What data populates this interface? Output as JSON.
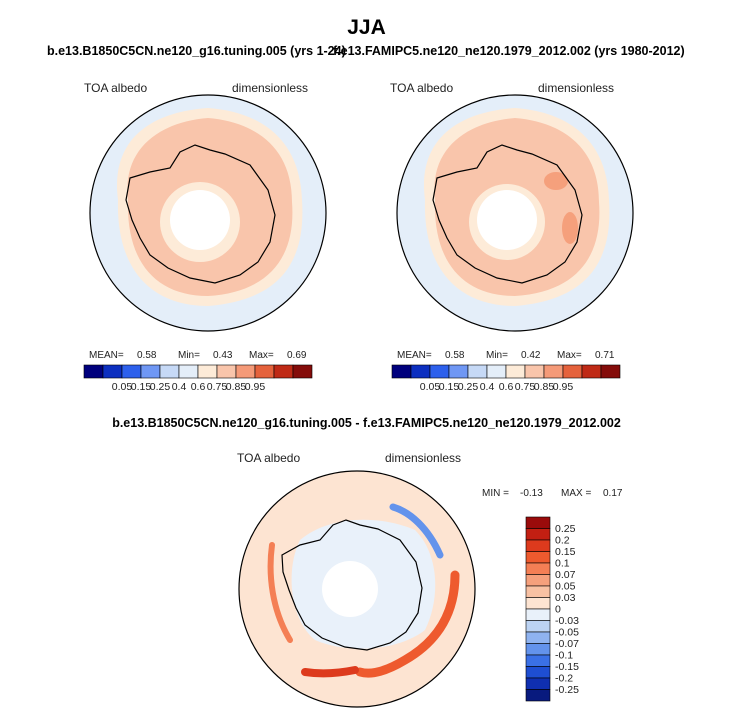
{
  "figure": {
    "season": "JJA"
  },
  "panels": [
    {
      "title": "b.e13.B1850C5CN.ne120_g16.tuning.005 (yrs 1-24)",
      "variable": "TOA albedo",
      "units": "dimensionless",
      "stats": {
        "mean_label": "MEAN=",
        "mean": "0.58",
        "min_label": "Min=",
        "min": "0.43",
        "max_label": "Max=",
        "max": "0.69"
      }
    },
    {
      "title": "f.e13.FAMIPC5.ne120_ne120.1979_2012.002 (yrs 1980-2012)",
      "variable": "TOA albedo",
      "units": "dimensionless",
      "stats": {
        "mean_label": "MEAN=",
        "mean": "0.58",
        "min_label": "Min=",
        "min": "0.42",
        "max_label": "Max=",
        "max": "0.71"
      }
    },
    {
      "title": "b.e13.B1850C5CN.ne120_g16.tuning.005 - f.e13.FAMIPC5.ne120_ne120.1979_2012.002",
      "variable": "TOA albedo",
      "units": "dimensionless",
      "stats": {
        "min_label": "MIN =",
        "min": "-0.13",
        "max_label": "MAX =",
        "max": "0.17"
      }
    }
  ],
  "chart_data": [
    {
      "type": "heatmap",
      "projection": "south polar stereographic",
      "title": "b.e13.B1850C5CN.ne120_g16.tuning.005 (yrs 1-24)",
      "field": "TOA albedo",
      "units": "dimensionless",
      "mean": 0.58,
      "min": 0.43,
      "max": 0.69,
      "colorbar_levels": [
        "0.05",
        "0.15",
        "0.25",
        "0.4",
        "0.6",
        "0.75",
        "0.85",
        "0.95"
      ],
      "colorbar_colors": [
        "#00007d",
        "#0c2fc0",
        "#2d60ec",
        "#6f97f4",
        "#c6d9f6",
        "#e4eef9",
        "#fdebd8",
        "#f9c5ab",
        "#f59a78",
        "#e5623c",
        "#bf2a16",
        "#840c0a"
      ]
    },
    {
      "type": "heatmap",
      "projection": "south polar stereographic",
      "title": "f.e13.FAMIPC5.ne120_ne120.1979_2012.002 (yrs 1980-2012)",
      "field": "TOA albedo",
      "units": "dimensionless",
      "mean": 0.58,
      "min": 0.42,
      "max": 0.71,
      "colorbar_levels": [
        "0.05",
        "0.15",
        "0.25",
        "0.4",
        "0.6",
        "0.75",
        "0.85",
        "0.95"
      ],
      "colorbar_colors": [
        "#00007d",
        "#0c2fc0",
        "#2d60ec",
        "#6f97f4",
        "#c6d9f6",
        "#e4eef9",
        "#fdebd8",
        "#f9c5ab",
        "#f59a78",
        "#e5623c",
        "#bf2a16",
        "#840c0a"
      ]
    },
    {
      "type": "heatmap",
      "projection": "south polar stereographic",
      "title": "b.e13.B1850C5CN.ne120_g16.tuning.005 - f.e13.FAMIPC5.ne120_ne120.1979_2012.002",
      "field": "TOA albedo",
      "units": "dimensionless",
      "min": -0.13,
      "max": 0.17,
      "colorbar_levels": [
        "0.25",
        "0.2",
        "0.15",
        "0.1",
        "0.07",
        "0.05",
        "0.03",
        "0",
        "-0.03",
        "-0.05",
        "-0.07",
        "-0.1",
        "-0.15",
        "-0.2",
        "-0.25"
      ],
      "colorbar_colors": [
        "#9a0b0b",
        "#c21f12",
        "#dd3a1d",
        "#ee5a2e",
        "#f47f55",
        "#f5a07c",
        "#f8c1a3",
        "#fde4d2",
        "#e9f1fa",
        "#bcd3f3",
        "#8fb3f0",
        "#6393ec",
        "#3a70e6",
        "#1e4ed2",
        "#0f2fb0",
        "#081a7e"
      ]
    }
  ]
}
